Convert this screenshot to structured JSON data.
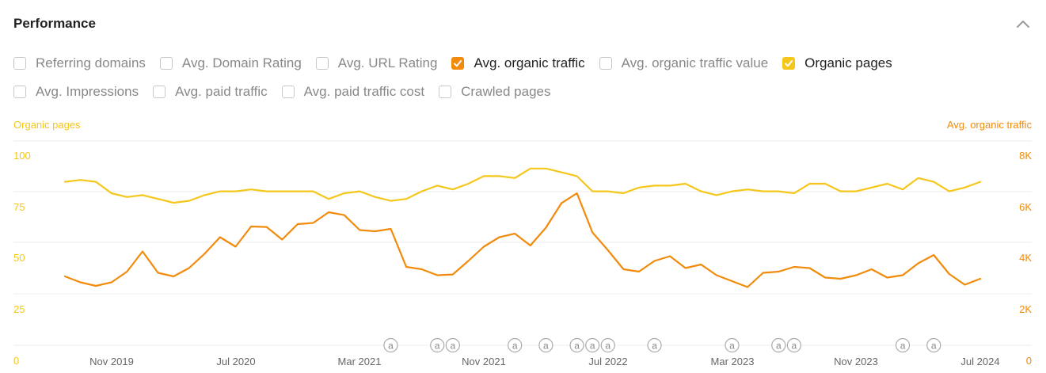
{
  "title": "Performance",
  "options_row1": [
    {
      "label": "Referring domains",
      "checked": false,
      "color": ""
    },
    {
      "label": "Avg. Domain Rating",
      "checked": false,
      "color": ""
    },
    {
      "label": "Avg. URL Rating",
      "checked": false,
      "color": ""
    },
    {
      "label": "Avg. organic traffic",
      "checked": true,
      "color": "#f28b0c"
    },
    {
      "label": "Avg. organic traffic value",
      "checked": false,
      "color": ""
    },
    {
      "label": "Organic pages",
      "checked": true,
      "color": "#f5c71a"
    }
  ],
  "options_row2": [
    {
      "label": "Avg. Impressions",
      "checked": false,
      "color": ""
    },
    {
      "label": "Avg. paid traffic",
      "checked": false,
      "color": ""
    },
    {
      "label": "Avg. paid traffic cost",
      "checked": false,
      "color": ""
    },
    {
      "label": "Crawled pages",
      "checked": false,
      "color": ""
    }
  ],
  "chart_data": {
    "type": "line",
    "left_axis_title": "Organic pages",
    "right_axis_title": "Avg. organic traffic",
    "left_ticks": [
      "0",
      "25",
      "50",
      "75",
      "100"
    ],
    "right_ticks": [
      "0",
      "2K",
      "4K",
      "6K",
      "8K"
    ],
    "x_ticks": [
      "Nov 2019",
      "Jul 2020",
      "Mar 2021",
      "Nov 2021",
      "Jul 2022",
      "Mar 2023",
      "Nov 2023",
      "Jul 2024"
    ],
    "ylim_left": [
      0,
      100
    ],
    "ylim_right": [
      0,
      8000
    ],
    "grid": true,
    "annotation_marker": "a",
    "annotations_x_index": [
      21,
      24,
      25,
      29,
      31,
      33,
      34,
      35,
      38,
      43,
      46,
      47,
      54,
      56
    ],
    "series": [
      {
        "name": "Organic pages",
        "axis": "left",
        "color": "#f5c71a",
        "values": [
          86,
          87,
          86,
          80,
          78,
          79,
          77,
          75,
          76,
          79,
          81,
          81,
          82,
          81,
          81,
          81,
          81,
          77,
          80,
          81,
          78,
          76,
          77,
          81,
          84,
          82,
          85,
          89,
          89,
          88,
          93,
          93,
          91,
          89,
          81,
          81,
          80,
          83,
          84,
          84,
          85,
          81,
          79,
          81,
          82,
          81,
          81,
          80,
          85,
          85,
          81,
          81,
          83,
          85,
          82,
          88,
          86,
          81,
          83,
          86
        ]
      },
      {
        "name": "Avg. organic traffic",
        "axis": "right",
        "color": "#f28b0c",
        "values": [
          2900,
          2650,
          2500,
          2650,
          3100,
          3950,
          3050,
          2900,
          3250,
          3850,
          4550,
          4150,
          5000,
          4980,
          4450,
          5100,
          5150,
          5600,
          5480,
          4850,
          4800,
          4900,
          3300,
          3200,
          2950,
          2980,
          3550,
          4150,
          4550,
          4700,
          4200,
          4950,
          5980,
          6400,
          4750,
          4000,
          3200,
          3100,
          3550,
          3750,
          3250,
          3400,
          2950,
          2700,
          2450,
          3050,
          3100,
          3300,
          3250,
          2850,
          2800,
          2950,
          3200,
          2850,
          2950,
          3450,
          3800,
          3000,
          2550,
          2800
        ]
      }
    ]
  },
  "colors": {
    "pages": "#f5c71a",
    "traffic": "#f28b0c",
    "grid": "#ececec",
    "tick_text": "#666666",
    "annot": "#aaaaaa"
  },
  "icons": {
    "collapse": "chevron-up-icon",
    "check": "check-icon",
    "annotation": "annotation-a-icon"
  }
}
